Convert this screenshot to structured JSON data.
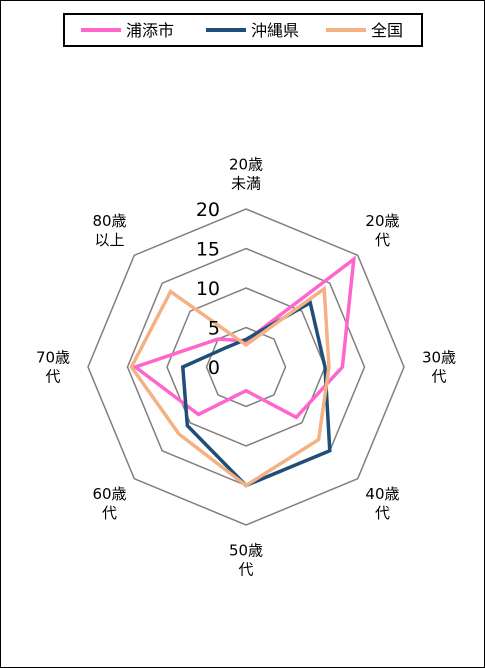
{
  "chart_data": {
    "type": "radar",
    "title": "",
    "categories": [
      [
        "20歳",
        "未満"
      ],
      [
        "20歳",
        "代"
      ],
      [
        "30歳",
        "代"
      ],
      [
        "40歳",
        "代"
      ],
      [
        "50歳",
        "代"
      ],
      [
        "60歳",
        "代"
      ],
      [
        "70歳",
        "代"
      ],
      [
        "80歳",
        "以上"
      ]
    ],
    "radial_ticks": [
      "0",
      "5",
      "10",
      "15",
      "20"
    ],
    "rmax": 20,
    "grid": true,
    "legend_position": "top",
    "series": [
      {
        "name": "浦添市",
        "color": "#ff66cc",
        "values": [
          3.3,
          19.3,
          12.2,
          9.0,
          3.0,
          8.5,
          14.0,
          5.0
        ]
      },
      {
        "name": "沖縄県",
        "color": "#1f4e79",
        "values": [
          3.5,
          11.5,
          10.0,
          15.0,
          15.0,
          10.5,
          8.0,
          3.5
        ]
      },
      {
        "name": "全国",
        "color": "#f4b183",
        "values": [
          2.8,
          14.0,
          10.5,
          13.0,
          15.0,
          12.0,
          14.5,
          13.5
        ]
      }
    ]
  }
}
